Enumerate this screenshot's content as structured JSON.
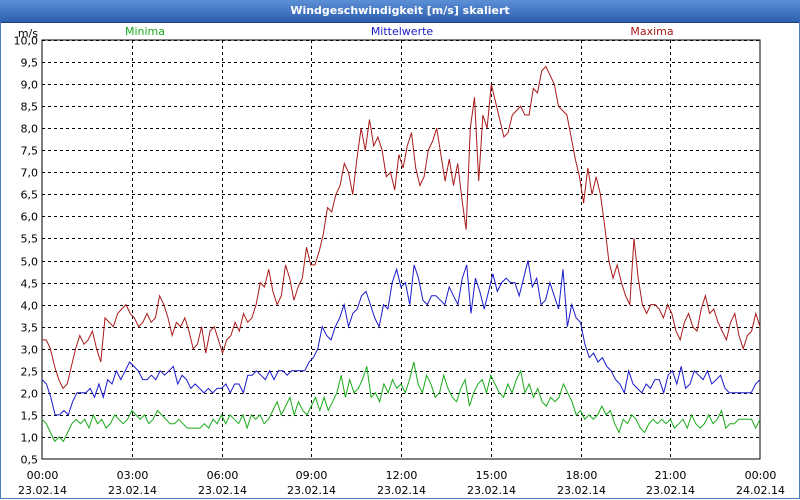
{
  "window": {
    "title": "Windgeschwindigkeit [m/s] skaliert"
  },
  "chart_data": {
    "type": "line",
    "title": "Windgeschwindigkeit [m/s] skaliert",
    "ylabel": "m/s",
    "ylim": [
      0.5,
      10.0
    ],
    "xlim_hours": [
      0,
      24
    ],
    "grid": true,
    "y_ticks": [
      "0,5",
      "1,0",
      "1,5",
      "2,0",
      "2,5",
      "3,0",
      "3,5",
      "4,0",
      "4,5",
      "5,0",
      "5,5",
      "6,0",
      "6,5",
      "7,0",
      "7,5",
      "8,0",
      "8,5",
      "9,0",
      "9,5",
      "10,0"
    ],
    "x_ticks": [
      {
        "time": "00:00",
        "date": "23.02.14"
      },
      {
        "time": "03:00",
        "date": "23.02.14"
      },
      {
        "time": "06:00",
        "date": "23.02.14"
      },
      {
        "time": "09:00",
        "date": "23.02.14"
      },
      {
        "time": "12:00",
        "date": "23.02.14"
      },
      {
        "time": "15:00",
        "date": "23.02.14"
      },
      {
        "time": "18:00",
        "date": "23.02.14"
      },
      {
        "time": "21:00",
        "date": "23.02.14"
      },
      {
        "time": "00:00",
        "date": "24.02.14"
      }
    ],
    "series": [
      {
        "name": "Minima",
        "color": "#1aaa1a",
        "values": [
          1.4,
          1.3,
          1.1,
          0.9,
          1.0,
          0.9,
          1.1,
          1.3,
          1.4,
          1.3,
          1.4,
          1.2,
          1.5,
          1.3,
          1.4,
          1.2,
          1.3,
          1.5,
          1.4,
          1.3,
          1.4,
          1.6,
          1.5,
          1.4,
          1.5,
          1.3,
          1.4,
          1.6,
          1.5,
          1.4,
          1.3,
          1.3,
          1.4,
          1.3,
          1.2,
          1.2,
          1.2,
          1.2,
          1.3,
          1.2,
          1.4,
          1.3,
          1.5,
          1.3,
          1.5,
          1.4,
          1.3,
          1.5,
          1.2,
          1.5,
          1.4,
          1.5,
          1.3,
          1.4,
          1.6,
          1.8,
          1.5,
          1.7,
          1.9,
          1.5,
          1.8,
          1.6,
          1.5,
          1.7,
          1.9,
          1.6,
          1.9,
          1.6,
          1.8,
          2.0,
          2.4,
          1.9,
          2.3,
          2.0,
          2.1,
          2.3,
          2.6,
          1.9,
          2.0,
          1.8,
          2.2,
          2.0,
          2.3,
          2.1,
          2.2,
          2.0,
          2.3,
          2.7,
          2.2,
          2.0,
          2.4,
          2.2,
          1.9,
          2.0,
          2.4,
          2.1,
          1.9,
          1.8,
          2.1,
          2.3,
          1.7,
          2.0,
          2.2,
          2.3,
          2.0,
          2.4,
          2.2,
          2.0,
          1.9,
          2.2,
          2.0,
          2.3,
          2.5,
          2.0,
          2.2,
          1.9,
          2.1,
          1.8,
          1.7,
          1.9,
          1.8,
          1.9,
          2.2,
          2.0,
          1.8,
          1.5,
          1.6,
          1.4,
          1.5,
          1.4,
          1.5,
          1.7,
          1.5,
          1.6,
          1.3,
          1.1,
          1.4,
          1.3,
          1.5,
          1.4,
          1.2,
          1.1,
          1.3,
          1.4,
          1.3,
          1.4,
          1.3,
          1.4,
          1.2,
          1.3,
          1.4,
          1.2,
          1.5,
          1.3,
          1.2,
          1.3,
          1.5,
          1.3,
          1.4,
          1.6,
          1.2,
          1.3,
          1.3,
          1.4,
          1.4,
          1.4,
          1.4,
          1.2,
          1.4
        ]
      },
      {
        "name": "Mittelwerte",
        "color": "#1a1acc",
        "values": [
          2.3,
          2.2,
          1.9,
          1.5,
          1.5,
          1.6,
          1.5,
          1.8,
          2.0,
          2.0,
          2.0,
          2.1,
          1.9,
          2.2,
          1.9,
          2.3,
          2.2,
          2.5,
          2.3,
          2.5,
          2.7,
          2.6,
          2.5,
          2.3,
          2.3,
          2.4,
          2.3,
          2.5,
          2.4,
          2.5,
          2.6,
          2.2,
          2.4,
          2.3,
          2.1,
          2.2,
          2.1,
          2.0,
          2.1,
          2.0,
          2.1,
          2.1,
          2.2,
          2.0,
          2.2,
          2.2,
          2.0,
          2.4,
          2.4,
          2.5,
          2.4,
          2.3,
          2.5,
          2.3,
          2.5,
          2.5,
          2.4,
          2.5,
          2.5,
          2.5,
          2.5,
          2.7,
          2.8,
          3.0,
          3.5,
          3.3,
          3.2,
          3.5,
          3.7,
          4.0,
          3.5,
          3.8,
          3.9,
          4.2,
          4.3,
          4.0,
          3.7,
          3.5,
          4.0,
          3.9,
          4.5,
          4.8,
          4.4,
          4.5,
          4.0,
          4.9,
          4.6,
          4.1,
          4.0,
          4.2,
          4.2,
          4.1,
          4.0,
          4.4,
          4.2,
          4.0,
          4.6,
          4.9,
          3.8,
          4.6,
          4.3,
          3.9,
          4.3,
          4.7,
          4.3,
          4.5,
          4.6,
          4.5,
          4.5,
          4.2,
          4.6,
          5.0,
          4.4,
          4.6,
          4.0,
          4.1,
          4.5,
          4.2,
          3.9,
          4.8,
          3.5,
          4.0,
          3.7,
          3.6,
          3.1,
          2.8,
          2.9,
          2.7,
          2.8,
          2.6,
          2.5,
          2.3,
          2.2,
          2.0,
          2.5,
          2.2,
          2.1,
          2.0,
          2.2,
          2.1,
          2.3,
          2.3,
          2.0,
          2.4,
          2.5,
          2.2,
          2.6,
          2.1,
          2.2,
          2.5,
          2.4,
          2.3,
          2.5,
          2.2,
          2.3,
          2.4,
          2.1,
          2.0,
          2.0,
          2.0,
          2.0,
          2.0,
          2.0,
          2.2,
          2.3
        ]
      },
      {
        "name": "Maxima",
        "color": "#aa1a1a",
        "values": [
          3.2,
          3.2,
          3.0,
          2.6,
          2.3,
          2.1,
          2.2,
          2.6,
          3.0,
          3.3,
          3.1,
          3.2,
          3.4,
          3.0,
          2.7,
          3.7,
          3.6,
          3.5,
          3.8,
          3.9,
          4.0,
          3.8,
          3.7,
          3.5,
          3.6,
          3.8,
          3.6,
          3.7,
          4.2,
          4.0,
          3.7,
          3.3,
          3.6,
          3.5,
          3.7,
          3.4,
          3.0,
          3.1,
          3.5,
          2.9,
          3.4,
          3.5,
          3.2,
          2.9,
          3.2,
          3.3,
          3.6,
          3.4,
          3.8,
          3.6,
          3.7,
          4.0,
          4.5,
          4.4,
          4.8,
          4.3,
          4.0,
          4.2,
          4.9,
          4.6,
          4.1,
          4.4,
          4.6,
          5.3,
          4.9,
          4.9,
          5.2,
          5.6,
          6.2,
          6.1,
          6.5,
          6.7,
          7.2,
          7.0,
          6.5,
          7.3,
          8.0,
          7.5,
          8.2,
          7.6,
          7.8,
          7.5,
          6.9,
          7.0,
          6.6,
          7.4,
          7.1,
          7.6,
          7.9,
          7.1,
          6.7,
          6.9,
          7.5,
          7.7,
          8.0,
          7.4,
          6.8,
          7.3,
          6.7,
          7.2,
          6.4,
          5.7,
          8.0,
          8.7,
          6.8,
          8.3,
          8.0,
          9.0,
          8.6,
          8.2,
          7.8,
          7.9,
          8.3,
          8.4,
          8.5,
          8.3,
          8.3,
          8.9,
          8.8,
          9.3,
          9.4,
          9.2,
          9.0,
          8.5,
          8.4,
          8.3,
          7.8,
          7.3,
          6.9,
          6.3,
          7.1,
          6.5,
          6.9,
          6.5,
          5.8,
          5.0,
          4.6,
          4.9,
          4.5,
          4.2,
          4.0,
          5.5,
          4.6,
          4.0,
          3.8,
          4.0,
          4.0,
          3.9,
          3.7,
          4.0,
          3.8,
          3.4,
          3.2,
          3.6,
          3.8,
          3.5,
          3.4,
          3.9,
          4.2,
          3.8,
          3.9,
          3.6,
          3.4,
          3.2,
          3.6,
          3.8,
          3.3,
          3.0,
          3.3,
          3.4,
          3.8,
          3.5
        ]
      }
    ]
  }
}
